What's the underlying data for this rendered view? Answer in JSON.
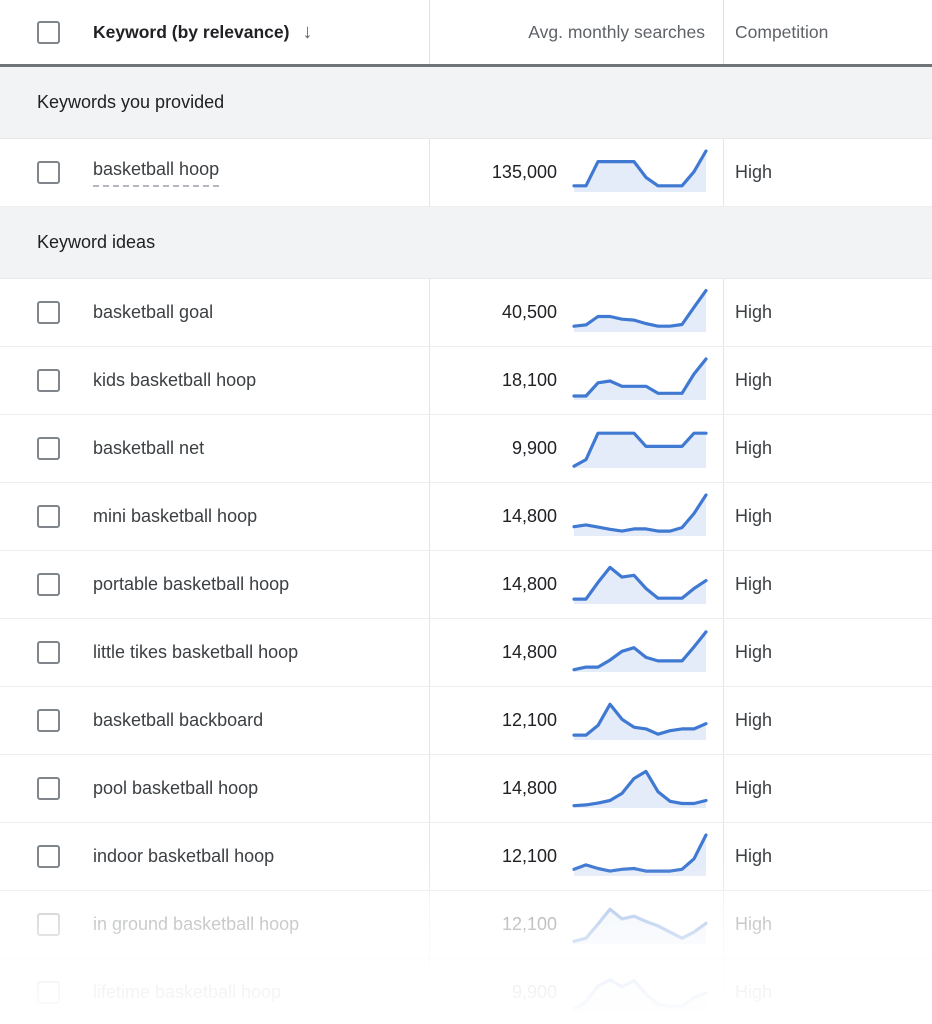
{
  "header": {
    "keyword_label": "Keyword (by relevance)",
    "sort_icon": "↓",
    "avg_label": "Avg. monthly searches",
    "competition_label": "Competition"
  },
  "colors": {
    "spark_line": "#4079d2",
    "spark_fill": "#e5ecf9",
    "section_bg": "#f1f3f4",
    "header_rule": "#6f7479"
  },
  "rows": [
    {
      "type": "section",
      "label": "Keywords you provided"
    },
    {
      "type": "keyword",
      "keyword": "basketball hoop",
      "searches": "135,000",
      "competition": "High",
      "provided": true,
      "dim": 1,
      "spark": [
        1.3,
        1.3,
        6.8,
        6.8,
        6.8,
        6.8,
        3.2,
        1.3,
        1.3,
        1.3,
        4.5,
        9.2
      ]
    },
    {
      "type": "section",
      "label": "Keyword ideas"
    },
    {
      "type": "keyword",
      "keyword": "basketball goal",
      "searches": "40,500",
      "competition": "High",
      "provided": false,
      "dim": 1,
      "spark": [
        1.2,
        1.5,
        3.4,
        3.4,
        2.8,
        2.6,
        1.8,
        1.2,
        1.2,
        1.6,
        5.5,
        9.3
      ]
    },
    {
      "type": "keyword",
      "keyword": "kids basketball hoop",
      "searches": "18,100",
      "competition": "High",
      "provided": false,
      "dim": 1,
      "spark": [
        0.8,
        0.8,
        3.8,
        4.2,
        3.0,
        3.0,
        3.0,
        1.4,
        1.4,
        1.4,
        5.8,
        9.2
      ]
    },
    {
      "type": "keyword",
      "keyword": "basketball net",
      "searches": "9,900",
      "competition": "High",
      "provided": false,
      "dim": 1,
      "spark": [
        0.3,
        1.8,
        7.8,
        7.8,
        7.8,
        7.8,
        4.8,
        4.8,
        4.8,
        4.8,
        7.8,
        7.8
      ]
    },
    {
      "type": "keyword",
      "keyword": "mini basketball hoop",
      "searches": "14,800",
      "competition": "High",
      "provided": false,
      "dim": 1,
      "spark": [
        2.0,
        2.4,
        1.9,
        1.4,
        1.0,
        1.5,
        1.5,
        1.0,
        1.0,
        1.8,
        5.0,
        9.2
      ]
    },
    {
      "type": "keyword",
      "keyword": "portable basketball hoop",
      "searches": "14,800",
      "competition": "High",
      "provided": false,
      "dim": 1,
      "spark": [
        1.0,
        1.0,
        4.8,
        8.2,
        6.0,
        6.4,
        3.4,
        1.2,
        1.2,
        1.2,
        3.4,
        5.2
      ]
    },
    {
      "type": "keyword",
      "keyword": "little tikes basketball hoop",
      "searches": "14,800",
      "competition": "High",
      "provided": false,
      "dim": 1,
      "spark": [
        0.4,
        1.0,
        1.0,
        2.6,
        4.6,
        5.4,
        3.2,
        2.4,
        2.4,
        2.4,
        5.6,
        9.0
      ]
    },
    {
      "type": "keyword",
      "keyword": "basketball backboard",
      "searches": "12,100",
      "competition": "High",
      "provided": false,
      "dim": 1,
      "spark": [
        1.0,
        1.0,
        3.2,
        8.0,
        4.6,
        2.8,
        2.4,
        1.2,
        2.0,
        2.4,
        2.4,
        3.6
      ]
    },
    {
      "type": "keyword",
      "keyword": "pool basketball hoop",
      "searches": "14,800",
      "competition": "High",
      "provided": false,
      "dim": 1,
      "spark": [
        0.4,
        0.6,
        1.0,
        1.6,
        3.2,
        6.6,
        8.2,
        3.6,
        1.4,
        0.9,
        0.9,
        1.6
      ]
    },
    {
      "type": "keyword",
      "keyword": "indoor basketball hoop",
      "searches": "12,100",
      "competition": "High",
      "provided": false,
      "dim": 1,
      "spark": [
        1.4,
        2.4,
        1.6,
        1.0,
        1.4,
        1.6,
        1.0,
        1.0,
        1.0,
        1.4,
        3.8,
        9.2
      ]
    },
    {
      "type": "keyword",
      "keyword": "in ground basketball hoop",
      "searches": "12,100",
      "competition": "High",
      "provided": false,
      "dim": 0.5,
      "spark": [
        0.5,
        1.2,
        4.4,
        7.8,
        5.6,
        6.2,
        5.0,
        4.0,
        2.6,
        1.2,
        2.6,
        4.6
      ]
    },
    {
      "type": "keyword",
      "keyword": "lifetime basketball hoop",
      "searches": "9,900",
      "competition": "High",
      "provided": false,
      "dim": 0.3,
      "spark": [
        0.6,
        2.2,
        5.8,
        7.2,
        5.6,
        7.0,
        4.0,
        1.6,
        1.2,
        1.2,
        3.2,
        4.2
      ]
    }
  ]
}
